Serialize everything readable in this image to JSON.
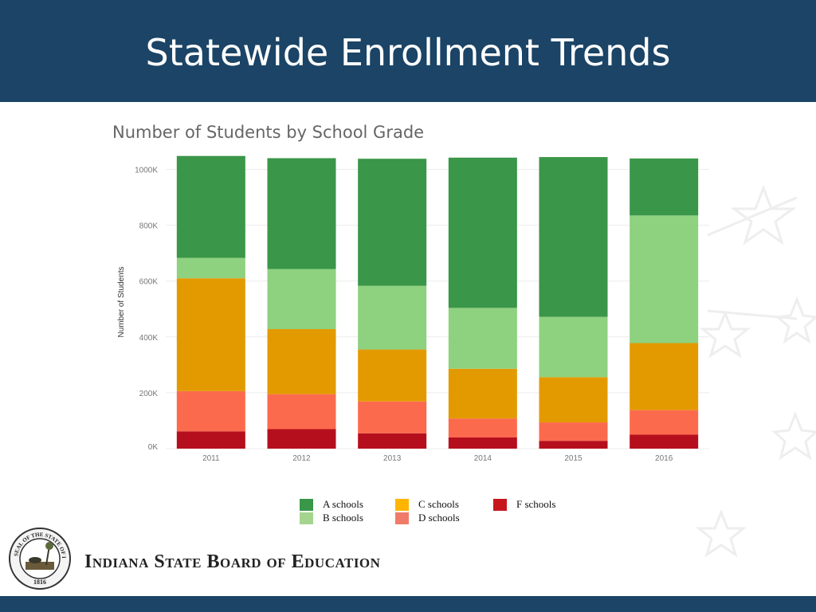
{
  "slide": {
    "title": "Statewide Enrollment Trends",
    "organization": "Indiana State Board of Education",
    "seal_text": "SEAL OF THE STATE OF INDIANA",
    "seal_year": "1816"
  },
  "colors": {
    "banner": "#1b4466",
    "a_schools": "#3a9648",
    "b_schools": "#8ed17f",
    "c_schools": "#e39a00",
    "d_schools": "#fc6a4d",
    "f_schools": "#b50f1d"
  },
  "chart_data": {
    "type": "bar",
    "stacked": true,
    "title": "Number of Students by School Grade",
    "ylabel": "Number of Students",
    "xlabel": "",
    "ylim": [
      0,
      1050000
    ],
    "yticks": [
      0,
      200000,
      400000,
      600000,
      800000,
      1000000
    ],
    "ytick_labels": [
      "0K",
      "200K",
      "400K",
      "600K",
      "800K",
      "1000K"
    ],
    "grid": true,
    "legend_position": "bottom",
    "categories": [
      "2011",
      "2012",
      "2013",
      "2014",
      "2015",
      "2016"
    ],
    "series": [
      {
        "name": "F schools",
        "color": "#b50f1d",
        "values": [
          62000,
          70000,
          55000,
          40000,
          28000,
          50000
        ]
      },
      {
        "name": "D schools",
        "color": "#fc6a4d",
        "values": [
          144000,
          125000,
          114000,
          68000,
          66000,
          88000
        ]
      },
      {
        "name": "C schools",
        "color": "#e39a00",
        "values": [
          404000,
          233000,
          186000,
          178000,
          162000,
          240000
        ]
      },
      {
        "name": "B schools",
        "color": "#8ed17f",
        "values": [
          73000,
          215000,
          228000,
          218000,
          216000,
          457000
        ]
      },
      {
        "name": "A schools",
        "color": "#3a9648",
        "values": [
          365000,
          397000,
          455000,
          538000,
          572000,
          204000
        ]
      }
    ]
  },
  "legend": [
    {
      "label": "A schools",
      "color": "#3a9648"
    },
    {
      "label": "B schools",
      "color": "#a5d48f"
    },
    {
      "label": "C schools",
      "color": "#ffb400"
    },
    {
      "label": "D schools",
      "color": "#f07b68"
    },
    {
      "label": "F schools",
      "color": "#c8161d"
    }
  ]
}
